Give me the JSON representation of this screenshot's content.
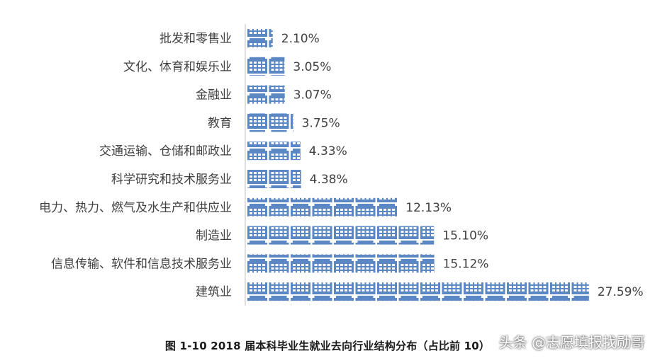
{
  "chart_data": {
    "type": "bar",
    "orientation": "horizontal",
    "categories": [
      "批发和零售业",
      "文化、体育和娱乐业",
      "金融业",
      "教育",
      "交通运输、仓储和邮政业",
      "科学研究和技术服务业",
      "电力、热力、燃气及水生产和供应业",
      "制造业",
      "信息传输、软件和信息技术服务业",
      "建筑业"
    ],
    "values": [
      2.1,
      3.05,
      3.07,
      3.75,
      4.33,
      4.38,
      12.13,
      15.1,
      15.12,
      27.59
    ],
    "value_labels": [
      "2.10%",
      "3.05%",
      "3.07%",
      "3.75%",
      "4.33%",
      "4.38%",
      "12.13%",
      "15.10%",
      "15.12%",
      "27.59%"
    ],
    "unit": "%",
    "bar_style": "pictogram-building",
    "bar_color": "#5b87c5",
    "xlim": [
      0,
      28
    ],
    "grid": false,
    "title": "图 1-10    2018 届本科毕业生就业去向行业结构分布（占比前 10）"
  },
  "caption": "图 1-10    2018 届本科毕业生就业去向行业结构分布（占比前 10）",
  "watermark": "头条 @志愿填报找勋哥"
}
